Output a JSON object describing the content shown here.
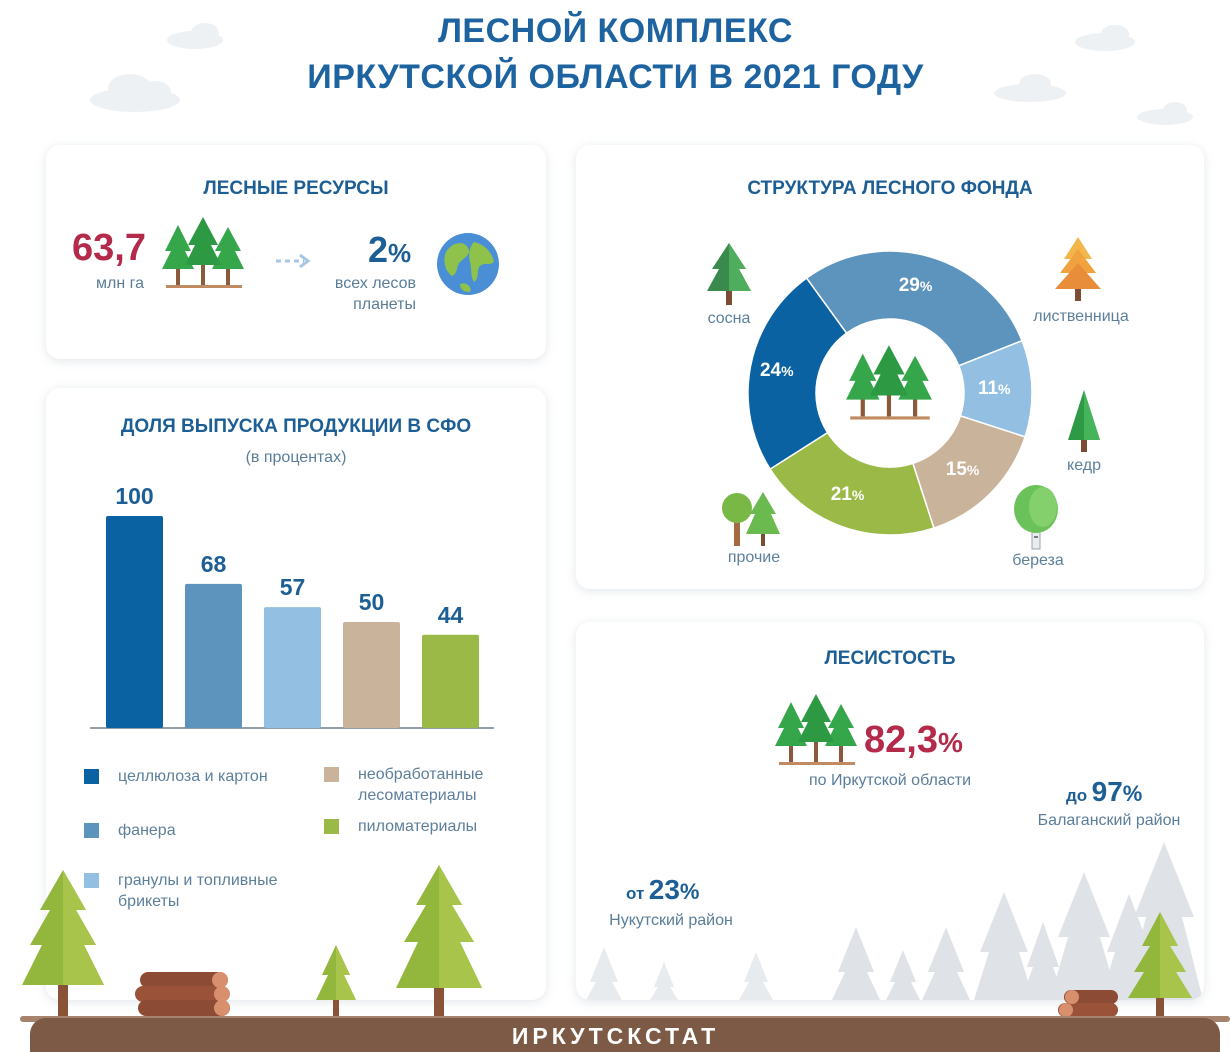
{
  "title": {
    "line1": "ЛЕСНОЙ КОМПЛЕКС",
    "line2": "ИРКУТСКОЙ ОБЛАСТИ В 2021 ГОДУ"
  },
  "resources": {
    "title": "ЛЕСНЫЕ РЕСУРСЫ",
    "area_value": "63,7",
    "area_unit": "млн га",
    "share_value": "2",
    "share_unit": "%",
    "share_text1": "всех лесов",
    "share_text2": "планеты"
  },
  "structure": {
    "title": "СТРУКТУРА ЛЕСНОГО ФОНДА",
    "labels": {
      "pine": "сосна",
      "larch": "лиственница",
      "cedar": "кедр",
      "birch": "береза",
      "other": "прочие"
    }
  },
  "production": {
    "title": "ДОЛЯ ВЫПУСКА ПРОДУКЦИИ В СФО",
    "subtitle": "(в процентах)"
  },
  "forest_cover": {
    "title": "ЛЕСИСТОСТЬ",
    "value": "82,3",
    "unit": "%",
    "caption": "по Иркутской области",
    "max_prefix": "до",
    "max_value": "97",
    "max_unit": "%",
    "max_district": "Балаганский район",
    "min_prefix": "от",
    "min_value": "23",
    "min_unit": "%",
    "min_district": "Нукутский район"
  },
  "footer": "ИРКУТСКСТАТ",
  "colors": {
    "dark_blue": "#0a62a3",
    "mid_blue": "#5d94bd",
    "light_blue": "#93bfe3",
    "beige": "#c9b39b",
    "green": "#9ab946"
  },
  "chart_data": [
    {
      "type": "bar",
      "title": "ДОЛЯ ВЫПУСКА ПРОДУКЦИИ В СФО",
      "subtitle": "(в процентах)",
      "categories": [
        "целлюлоза и картон",
        "фанера",
        "гранулы и топливные брикеты",
        "необработанные лесоматериалы",
        "пиломатериалы"
      ],
      "values": [
        100,
        68,
        57,
        50,
        44
      ],
      "colors": [
        "#0a62a3",
        "#5d94bd",
        "#93bfe3",
        "#c9b39b",
        "#9ab946"
      ],
      "ylim": [
        0,
        100
      ],
      "legend": [
        {
          "label": "целлюлоза и картон",
          "color": "#0a62a3"
        },
        {
          "label": "фанера",
          "color": "#5d94bd"
        },
        {
          "label": "гранулы и топливные брикеты",
          "color": "#93bfe3"
        },
        {
          "label": "необработанные лесоматериалы",
          "color": "#c9b39b"
        },
        {
          "label": "пиломатериалы",
          "color": "#9ab946"
        }
      ]
    },
    {
      "type": "pie",
      "title": "СТРУКТУРА ЛЕСНОГО ФОНДА",
      "slices": [
        {
          "label": "лиственница",
          "value": 29,
          "color": "#5d94bd"
        },
        {
          "label": "кедр",
          "value": 11,
          "color": "#93bfe3"
        },
        {
          "label": "береза",
          "value": 15,
          "color": "#c9b39b"
        },
        {
          "label": "прочие",
          "value": 21,
          "color": "#9ab946"
        },
        {
          "label": "сосна",
          "value": 24,
          "color": "#0a62a3"
        }
      ],
      "unit": "%"
    }
  ]
}
